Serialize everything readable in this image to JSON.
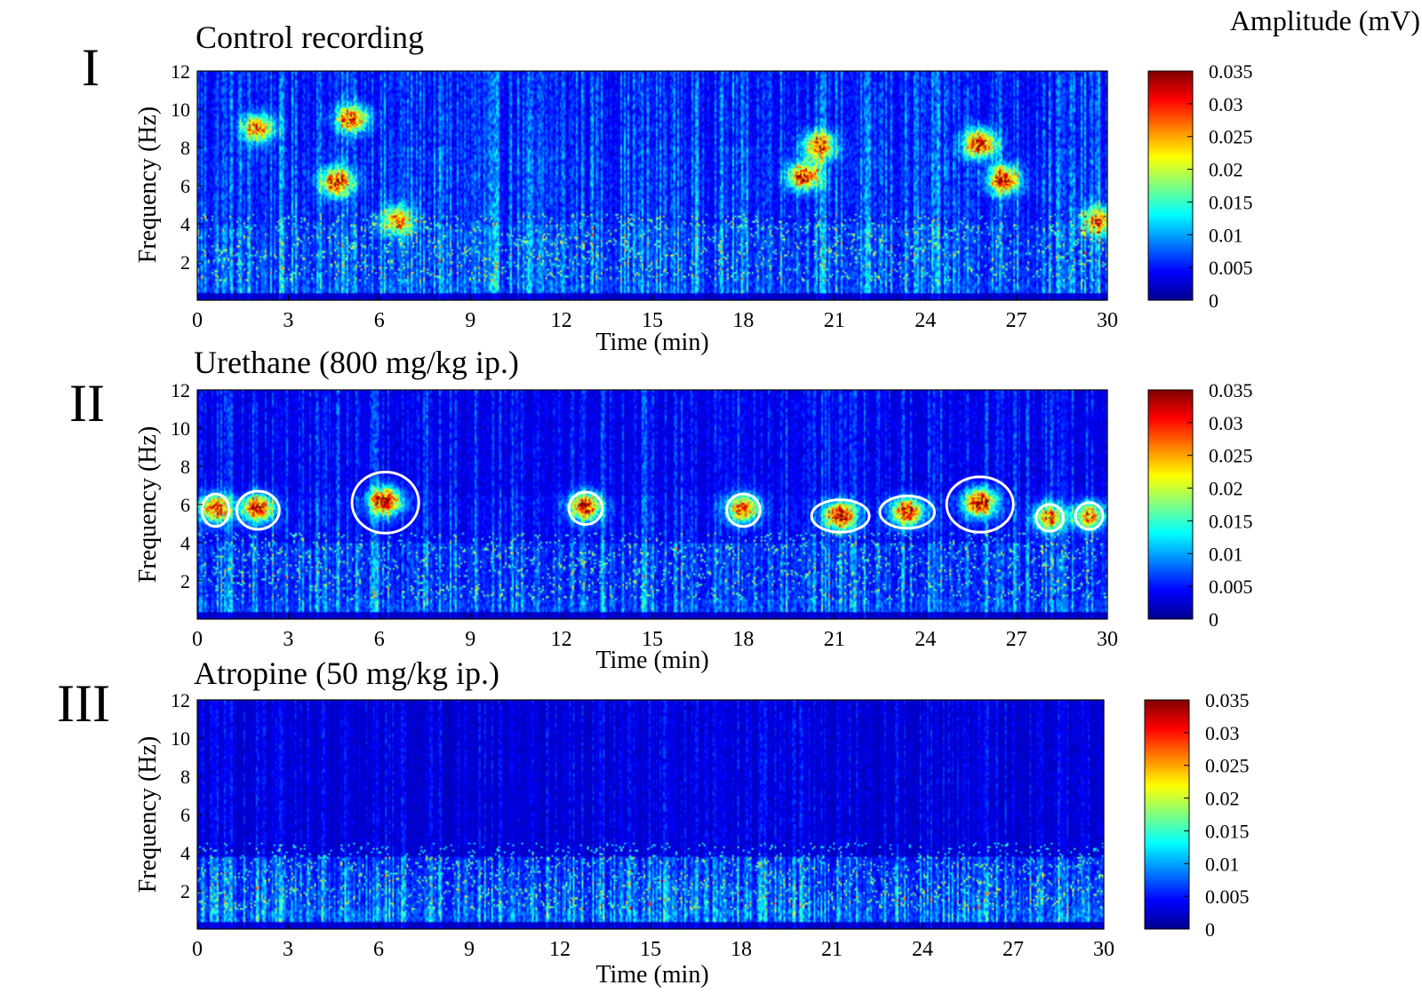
{
  "colorbar": {
    "title": "Amplitude (mV)",
    "ticks": [
      "0.035",
      "0.03",
      "0.025",
      "0.02",
      "0.015",
      "0.01",
      "0.005",
      "0"
    ],
    "colormap": [
      "#00008f",
      "#0000ff",
      "#0080ff",
      "#00ffff",
      "#80ff80",
      "#ffff00",
      "#ff8000",
      "#ff0000",
      "#800000"
    ]
  },
  "chart_data": [
    {
      "type": "heatmap",
      "panel_label": "I",
      "title": "Control recording",
      "xlabel": "Time (min)",
      "ylabel": "Frequency (Hz)",
      "xlim": [
        0,
        30
      ],
      "ylim": [
        0,
        12
      ],
      "xticks": [
        "0",
        "3",
        "6",
        "9",
        "12",
        "15",
        "18",
        "21",
        "24",
        "27",
        "30"
      ],
      "yticks": [
        "2",
        "4",
        "6",
        "8",
        "10",
        "12"
      ],
      "clim": [
        0,
        0.035
      ],
      "bursts": [
        {
          "t": 2.0,
          "f": 9.0,
          "amp": 0.026
        },
        {
          "t": 4.6,
          "f": 6.2,
          "amp": 0.03
        },
        {
          "t": 5.1,
          "f": 9.5,
          "amp": 0.028
        },
        {
          "t": 6.6,
          "f": 4.2,
          "amp": 0.024
        },
        {
          "t": 20.0,
          "f": 6.5,
          "amp": 0.03
        },
        {
          "t": 20.5,
          "f": 8.1,
          "amp": 0.028
        },
        {
          "t": 25.8,
          "f": 8.2,
          "amp": 0.032
        },
        {
          "t": 26.6,
          "f": 6.3,
          "amp": 0.03
        },
        {
          "t": 29.7,
          "f": 4.2,
          "amp": 0.024
        }
      ],
      "circled_events": []
    },
    {
      "type": "heatmap",
      "panel_label": "II",
      "title": "Urethane (800 mg/kg ip.)",
      "xlabel": "Time (min)",
      "ylabel": "Frequency (Hz)",
      "xlim": [
        0,
        30
      ],
      "ylim": [
        0,
        12
      ],
      "xticks": [
        "0",
        "3",
        "6",
        "9",
        "12",
        "15",
        "18",
        "21",
        "24",
        "27",
        "30"
      ],
      "yticks": [
        "2",
        "4",
        "6",
        "8",
        "10",
        "12"
      ],
      "clim": [
        0,
        0.035
      ],
      "bursts": [
        {
          "t": 0.6,
          "f": 5.8,
          "amp": 0.03
        },
        {
          "t": 2.0,
          "f": 5.8,
          "amp": 0.031
        },
        {
          "t": 6.2,
          "f": 6.2,
          "amp": 0.035
        },
        {
          "t": 12.8,
          "f": 5.9,
          "amp": 0.033
        },
        {
          "t": 18.0,
          "f": 5.8,
          "amp": 0.028
        },
        {
          "t": 21.2,
          "f": 5.4,
          "amp": 0.032
        },
        {
          "t": 23.4,
          "f": 5.6,
          "amp": 0.032
        },
        {
          "t": 25.8,
          "f": 6.1,
          "amp": 0.035
        },
        {
          "t": 28.1,
          "f": 5.3,
          "amp": 0.026
        },
        {
          "t": 29.4,
          "f": 5.4,
          "amp": 0.025
        }
      ],
      "circled_events": [
        {
          "t": 0.6,
          "f": 5.7,
          "rt": 0.45,
          "rf": 0.85
        },
        {
          "t": 2.0,
          "f": 5.7,
          "rt": 0.7,
          "rf": 1.0
        },
        {
          "t": 6.2,
          "f": 6.1,
          "rt": 1.1,
          "rf": 1.6
        },
        {
          "t": 12.8,
          "f": 5.8,
          "rt": 0.55,
          "rf": 0.85
        },
        {
          "t": 18.0,
          "f": 5.7,
          "rt": 0.55,
          "rf": 0.85
        },
        {
          "t": 21.2,
          "f": 5.4,
          "rt": 0.95,
          "rf": 0.85
        },
        {
          "t": 23.4,
          "f": 5.6,
          "rt": 0.9,
          "rf": 0.85
        },
        {
          "t": 25.8,
          "f": 6.0,
          "rt": 1.1,
          "rf": 1.45
        },
        {
          "t": 28.1,
          "f": 5.3,
          "rt": 0.45,
          "rf": 0.7
        },
        {
          "t": 29.4,
          "f": 5.4,
          "rt": 0.45,
          "rf": 0.7
        }
      ]
    },
    {
      "type": "heatmap",
      "panel_label": "III",
      "title": "Atropine (50 mg/kg ip.)",
      "xlabel": "Time (min)",
      "ylabel": "Frequency (Hz)",
      "xlim": [
        0,
        30
      ],
      "ylim": [
        0,
        12
      ],
      "xticks": [
        "0",
        "3",
        "6",
        "9",
        "12",
        "15",
        "18",
        "21",
        "24",
        "27",
        "30"
      ],
      "yticks": [
        "2",
        "4",
        "6",
        "8",
        "10",
        "12"
      ],
      "clim": [
        0,
        0.035
      ],
      "bursts": [],
      "circled_events": []
    }
  ]
}
